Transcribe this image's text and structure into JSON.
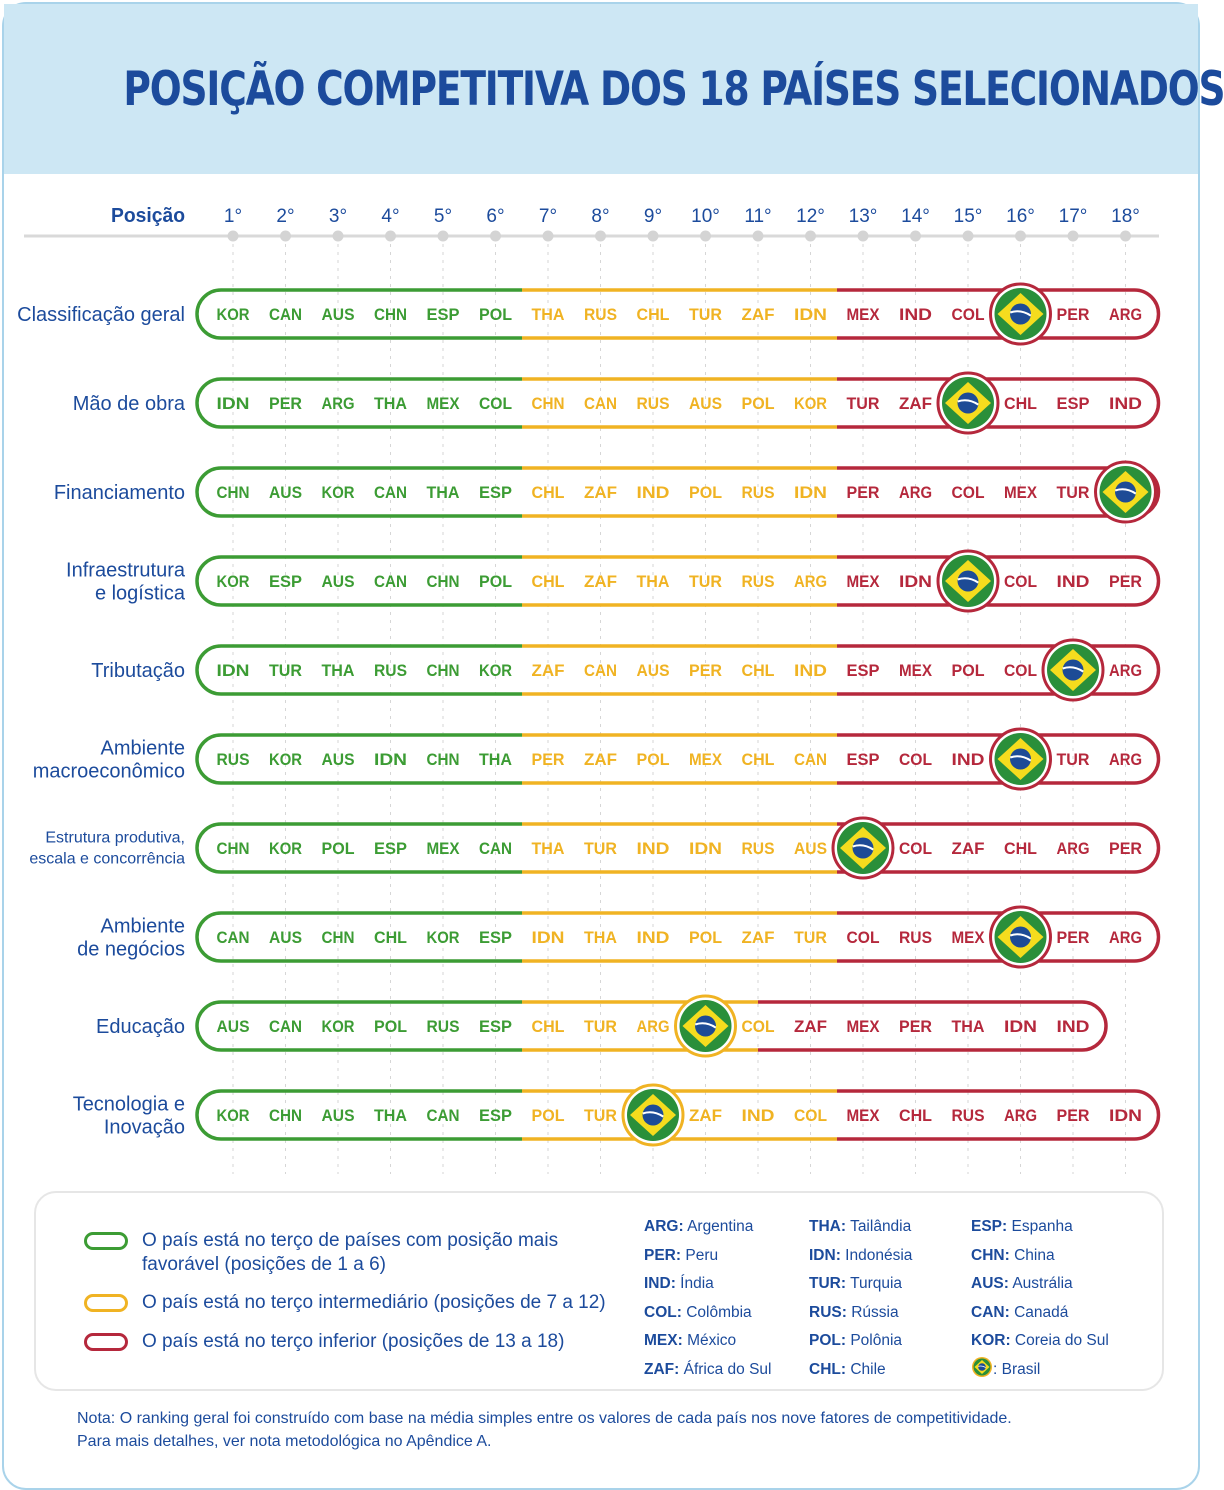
{
  "title": "POSIÇÃO COMPETITIVA DOS 18 PAÍSES SELECIONADOS",
  "colors": {
    "green": "#3c9c34",
    "yellow": "#f0b323",
    "red": "#b5283c",
    "brand_blue": "#1c4b9c",
    "header_bg": "#cde7f4"
  },
  "chart_data": {
    "type": "table",
    "position_label": "Posição",
    "positions": [
      "1°",
      "2°",
      "3°",
      "4°",
      "5°",
      "6°",
      "7°",
      "8°",
      "9°",
      "10°",
      "11°",
      "12°",
      "13°",
      "14°",
      "15°",
      "16°",
      "17°",
      "18°"
    ],
    "rows": [
      {
        "label": [
          "Classificação geral"
        ],
        "small": false,
        "countries": [
          "KOR",
          "CAN",
          "AUS",
          "CHN",
          "ESP",
          "POL",
          "THA",
          "RUS",
          "CHL",
          "TUR",
          "ZAF",
          "IDN",
          "MEX",
          "IND",
          "COL",
          "BRA",
          "PER",
          "ARG"
        ]
      },
      {
        "label": [
          "Mão de obra"
        ],
        "small": false,
        "countries": [
          "IDN",
          "PER",
          "ARG",
          "THA",
          "MEX",
          "COL",
          "CHN",
          "CAN",
          "RUS",
          "AUS",
          "POL",
          "KOR",
          "TUR",
          "ZAF",
          "BRA",
          "CHL",
          "ESP",
          "IND"
        ]
      },
      {
        "label": [
          "Financiamento"
        ],
        "small": false,
        "countries": [
          "CHN",
          "AUS",
          "KOR",
          "CAN",
          "THA",
          "ESP",
          "CHL",
          "ZAF",
          "IND",
          "POL",
          "RUS",
          "IDN",
          "PER",
          "ARG",
          "COL",
          "MEX",
          "TUR",
          "BRA"
        ]
      },
      {
        "label": [
          "Infraestrutura",
          "e logística"
        ],
        "small": false,
        "countries": [
          "KOR",
          "ESP",
          "AUS",
          "CAN",
          "CHN",
          "POL",
          "CHL",
          "ZAF",
          "THA",
          "TUR",
          "RUS",
          "ARG",
          "MEX",
          "IDN",
          "BRA",
          "COL",
          "IND",
          "PER"
        ]
      },
      {
        "label": [
          "Tributação"
        ],
        "small": false,
        "countries": [
          "IDN",
          "TUR",
          "THA",
          "RUS",
          "CHN",
          "KOR",
          "ZAF",
          "CAN",
          "AUS",
          "PER",
          "CHL",
          "IND",
          "ESP",
          "MEX",
          "POL",
          "COL",
          "BRA",
          "ARG"
        ]
      },
      {
        "label": [
          "Ambiente",
          "macroeconômico"
        ],
        "small": false,
        "countries": [
          "RUS",
          "KOR",
          "AUS",
          "IDN",
          "CHN",
          "THA",
          "PER",
          "ZAF",
          "POL",
          "MEX",
          "CHL",
          "CAN",
          "ESP",
          "COL",
          "IND",
          "BRA",
          "TUR",
          "ARG"
        ]
      },
      {
        "label": [
          "Estrutura produtiva,",
          "escala e concorrência"
        ],
        "small": true,
        "countries": [
          "CHN",
          "KOR",
          "POL",
          "ESP",
          "MEX",
          "CAN",
          "THA",
          "TUR",
          "IND",
          "IDN",
          "RUS",
          "AUS",
          "BRA",
          "COL",
          "ZAF",
          "CHL",
          "ARG",
          "PER"
        ]
      },
      {
        "label": [
          "Ambiente",
          "de negócios"
        ],
        "small": false,
        "countries": [
          "CAN",
          "AUS",
          "CHN",
          "CHL",
          "KOR",
          "ESP",
          "IDN",
          "THA",
          "IND",
          "POL",
          "ZAF",
          "TUR",
          "COL",
          "RUS",
          "MEX",
          "BRA",
          "PER",
          "ARG"
        ]
      },
      {
        "label": [
          "Educação"
        ],
        "small": false,
        "countries": [
          "AUS",
          "CAN",
          "KOR",
          "POL",
          "RUS",
          "ESP",
          "CHL",
          "TUR",
          "ARG",
          "BRA",
          "COL",
          "ZAF",
          "MEX",
          "PER",
          "THA",
          "IDN",
          "IND"
        ]
      },
      {
        "label": [
          "Tecnologia e",
          "Inovação"
        ],
        "small": false,
        "countries": [
          "KOR",
          "CHN",
          "AUS",
          "THA",
          "CAN",
          "ESP",
          "POL",
          "TUR",
          "BRA",
          "ZAF",
          "IND",
          "COL",
          "MEX",
          "CHL",
          "RUS",
          "ARG",
          "PER",
          "IDN"
        ]
      }
    ]
  },
  "legend": {
    "green": "O país está no terço de países com posição mais favorável (posições de 1 a 6)",
    "yellow": "O país está no terço intermediário (posições de 7 a 12)",
    "red": "O país está no terço inferior (posições de 13 a 18)"
  },
  "codes": [
    [
      {
        "code": "ARG:",
        "name": "Argentina"
      },
      {
        "code": "PER:",
        "name": "Peru"
      },
      {
        "code": "IND:",
        "name": "Índia"
      },
      {
        "code": "COL:",
        "name": "Colômbia"
      },
      {
        "code": "MEX:",
        "name": "México"
      },
      {
        "code": "ZAF:",
        "name": "África do Sul"
      }
    ],
    [
      {
        "code": "THA:",
        "name": "Tailândia"
      },
      {
        "code": "IDN:",
        "name": "Indonésia"
      },
      {
        "code": "TUR:",
        "name": "Turquia"
      },
      {
        "code": "RUS:",
        "name": "Rússia"
      },
      {
        "code": "POL:",
        "name": "Polônia"
      },
      {
        "code": "CHL:",
        "name": "Chile"
      }
    ],
    [
      {
        "code": "ESP:",
        "name": "Espanha"
      },
      {
        "code": "CHN:",
        "name": "China"
      },
      {
        "code": "AUS:",
        "name": "Austrália"
      },
      {
        "code": "CAN:",
        "name": "Canadá"
      },
      {
        "code": "KOR:",
        "name": "Coreia do Sul"
      }
    ]
  ],
  "brazil_legend": ": Brasil",
  "note": [
    "Nota: O ranking geral foi construído com base na média simples entre os valores de cada país nos nove fatores de competitividade.",
    "Para mais detalhes, ver nota metodológica no Apêndice A."
  ]
}
